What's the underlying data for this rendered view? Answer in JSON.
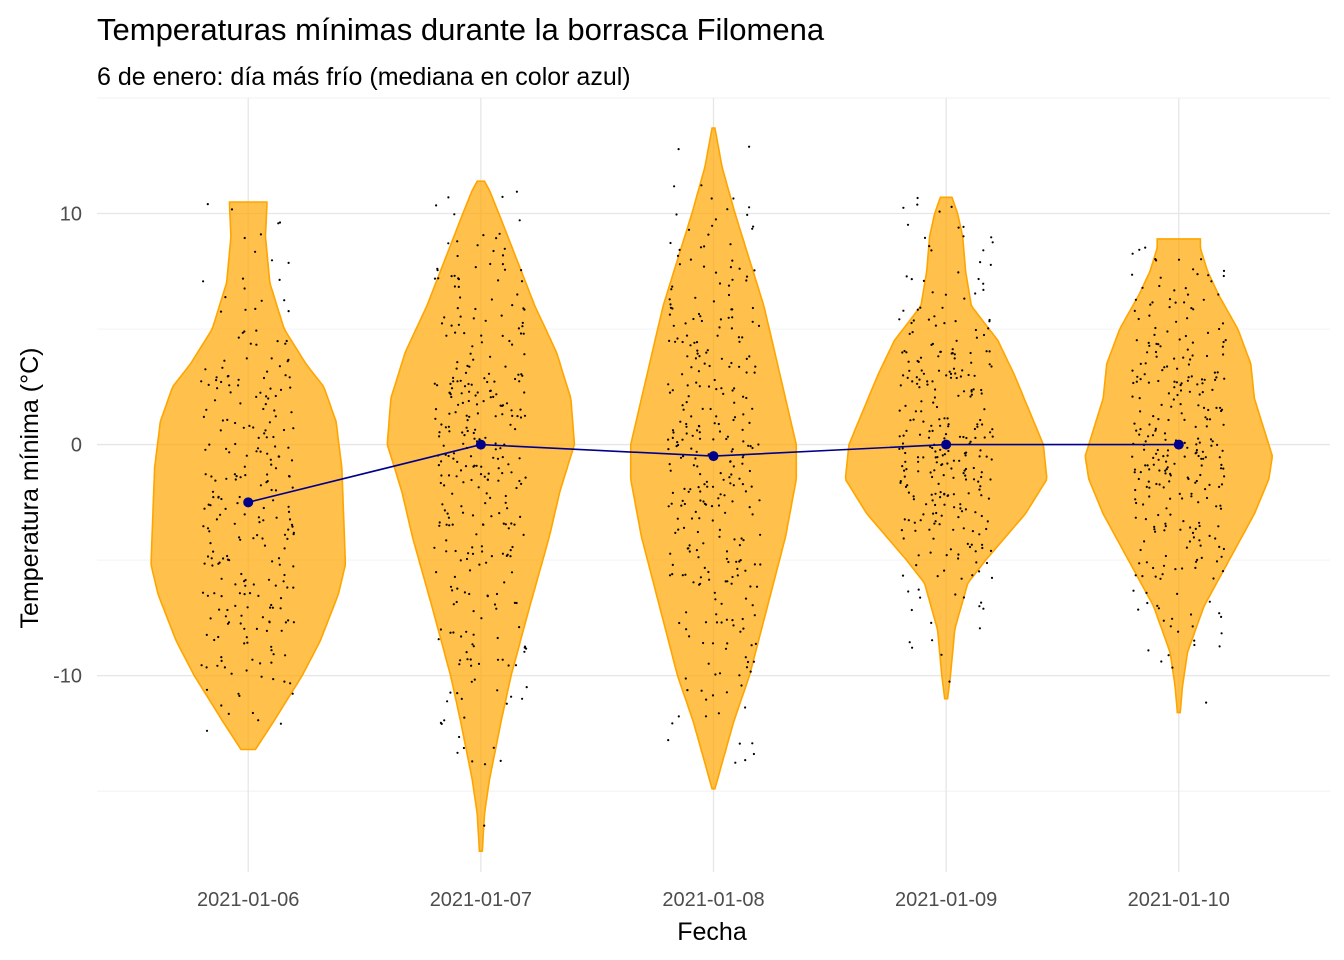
{
  "chart_data": {
    "type": "violin",
    "title": "Temperaturas mínimas durante la borrasca Filomena",
    "subtitle": "6 de enero: día más frío (mediana en color azul)",
    "xlabel": "Fecha",
    "ylabel": "Temperatura mínima (°C)",
    "ylim": [
      -18.5,
      15
    ],
    "y_ticks": [
      -10,
      0,
      10
    ],
    "y_tick_labels": [
      "-10",
      "0",
      "10"
    ],
    "categories": [
      "2021-01-06",
      "2021-01-07",
      "2021-01-08",
      "2021-01-09",
      "2021-01-10"
    ],
    "colors": {
      "violin": "#ffa500",
      "median": "#00008b",
      "points": "#000000",
      "grid": "#e6e6e6"
    },
    "series": [
      {
        "name": "2021-01-06",
        "median": -2.5,
        "min": -13.2,
        "max": 10.5,
        "n": 260,
        "density": [
          [
            -13.2,
            0.1
          ],
          [
            -12.0,
            0.35
          ],
          [
            -10.0,
            0.75
          ],
          [
            -8.5,
            1.0
          ],
          [
            -6.5,
            1.25
          ],
          [
            -5.2,
            1.35
          ],
          [
            -3.5,
            1.33
          ],
          [
            -1.0,
            1.3
          ],
          [
            1.0,
            1.22
          ],
          [
            2.5,
            1.05
          ],
          [
            3.5,
            0.8
          ],
          [
            5.0,
            0.5
          ],
          [
            7.0,
            0.3
          ],
          [
            9.0,
            0.24
          ],
          [
            10.4,
            0.26
          ],
          [
            10.5,
            0.26
          ]
        ]
      },
      {
        "name": "2021-01-07",
        "median": 0.0,
        "min": -17.6,
        "max": 11.4,
        "n": 320,
        "density": [
          [
            -17.6,
            0.02
          ],
          [
            -16.0,
            0.05
          ],
          [
            -14.5,
            0.12
          ],
          [
            -12.0,
            0.28
          ],
          [
            -10.0,
            0.42
          ],
          [
            -7.0,
            0.68
          ],
          [
            -4.0,
            0.95
          ],
          [
            -2.0,
            1.1
          ],
          [
            0.0,
            1.3
          ],
          [
            2.0,
            1.25
          ],
          [
            4.0,
            1.05
          ],
          [
            6.0,
            0.75
          ],
          [
            8.0,
            0.5
          ],
          [
            10.0,
            0.25
          ],
          [
            11.0,
            0.12
          ],
          [
            11.4,
            0.05
          ]
        ]
      },
      {
        "name": "2021-01-08",
        "median": -0.5,
        "min": -14.9,
        "max": 13.7,
        "n": 320,
        "density": [
          [
            -14.9,
            0.02
          ],
          [
            -14.0,
            0.1
          ],
          [
            -12.0,
            0.28
          ],
          [
            -10.0,
            0.5
          ],
          [
            -7.0,
            0.75
          ],
          [
            -4.0,
            1.0
          ],
          [
            -1.5,
            1.15
          ],
          [
            0.0,
            1.15
          ],
          [
            2.0,
            1.0
          ],
          [
            4.0,
            0.85
          ],
          [
            6.0,
            0.7
          ],
          [
            8.0,
            0.5
          ],
          [
            10.0,
            0.3
          ],
          [
            12.0,
            0.12
          ],
          [
            13.7,
            0.02
          ]
        ]
      },
      {
        "name": "2021-01-09",
        "median": 0.0,
        "min": -11.0,
        "max": 10.7,
        "n": 300,
        "density": [
          [
            -11.0,
            0.02
          ],
          [
            -10.0,
            0.06
          ],
          [
            -8.0,
            0.12
          ],
          [
            -6.0,
            0.3
          ],
          [
            -5.0,
            0.55
          ],
          [
            -3.0,
            1.1
          ],
          [
            -1.5,
            1.4
          ],
          [
            0.0,
            1.35
          ],
          [
            1.5,
            1.15
          ],
          [
            3.0,
            0.95
          ],
          [
            4.5,
            0.72
          ],
          [
            6.0,
            0.35
          ],
          [
            7.5,
            0.27
          ],
          [
            9.0,
            0.23
          ],
          [
            10.0,
            0.16
          ],
          [
            10.7,
            0.08
          ]
        ]
      },
      {
        "name": "2021-01-10",
        "median": 0.0,
        "min": -11.6,
        "max": 8.9,
        "n": 300,
        "density": [
          [
            -11.6,
            0.02
          ],
          [
            -10.5,
            0.05
          ],
          [
            -9.0,
            0.12
          ],
          [
            -7.0,
            0.35
          ],
          [
            -5.0,
            0.7
          ],
          [
            -3.0,
            1.05
          ],
          [
            -1.5,
            1.25
          ],
          [
            -0.5,
            1.3
          ],
          [
            0.5,
            1.2
          ],
          [
            2.0,
            1.05
          ],
          [
            3.5,
            1.0
          ],
          [
            5.0,
            0.82
          ],
          [
            6.5,
            0.55
          ],
          [
            7.5,
            0.4
          ],
          [
            8.5,
            0.3
          ],
          [
            8.9,
            0.3
          ]
        ]
      }
    ]
  }
}
